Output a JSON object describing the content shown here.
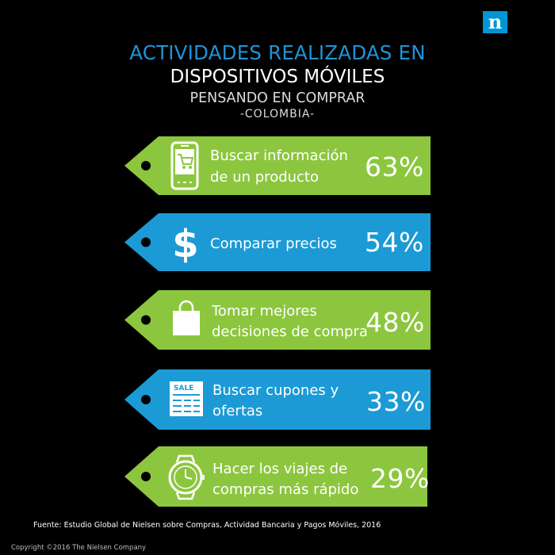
{
  "brand": {
    "logo_letter": "n",
    "color": "#0096d6"
  },
  "header": {
    "line1": "ACTIVIDADES REALIZADAS EN",
    "line2": "DISPOSITIVOS MÓVILES",
    "line3": "PENSANDO EN COMPRAR",
    "line4": "-COLOMBIA-"
  },
  "colors": {
    "green": "#8cc63f",
    "blue": "#1b9ad6",
    "title_blue": "#1e93d6"
  },
  "activities": [
    {
      "icon": "smartphone-cart-icon",
      "label_line1": "Buscar información",
      "label_line2": "de un producto",
      "percent": "63%",
      "color": "green"
    },
    {
      "icon": "dollar-icon",
      "label_line1": "Comparar precios",
      "label_line2": "",
      "percent": "54%",
      "color": "blue"
    },
    {
      "icon": "shopping-bag-icon",
      "label_line1": "Tomar mejores",
      "label_line2": "decisiones de compra",
      "percent": "48%",
      "color": "green"
    },
    {
      "icon": "sale-coupon-icon",
      "label_line1": "Buscar cupones y",
      "label_line2": "ofertas",
      "percent": "33%",
      "color": "blue"
    },
    {
      "icon": "watch-icon",
      "label_line1": "Hacer los viajes de",
      "label_line2": "compras más rápido",
      "percent": "29%",
      "color": "green"
    }
  ],
  "coupon_text": "SALE",
  "footer": {
    "source": "Fuente: Estudio Global de Nielsen sobre Compras, Actividad Bancaria y Pagos Móviles, 2016",
    "copyright": "Copyright ©2016 The Nielsen Company"
  }
}
